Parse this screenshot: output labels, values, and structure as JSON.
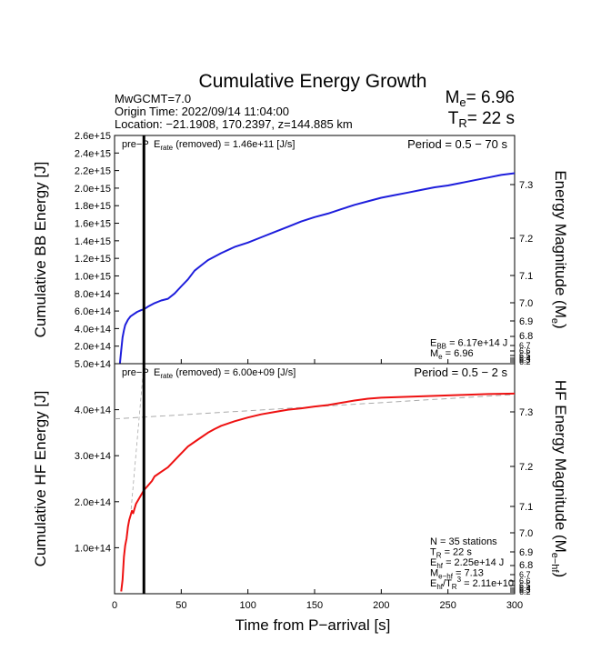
{
  "title": "Cumulative Energy Growth",
  "header": {
    "line1": "MwGCMT=7.0",
    "line2": "Origin Time: 2022/09/14 11:04:00",
    "line3": "Location: −21.1908, 170.2397, z=144.885 km",
    "me_label": "M",
    "me_sub": "e",
    "me_value": "= 6.96",
    "tr_label": "T",
    "tr_sub": "R",
    "tr_value": "= 22 s"
  },
  "xlabel": "Time from P−arrival [s]",
  "colors": {
    "bb": "#1e1edc",
    "hf": "#ee1111",
    "fit": "#aaaaaa"
  },
  "chart_data": [
    {
      "type": "line",
      "name": "bb",
      "ylabel": "Cumulative BB Energy [J]",
      "ylabel_right": "Energy Magnitude (M",
      "ylabel_right_sub": "e",
      "ylabel_right_close": ")",
      "prep_text": "pre−P",
      "erate_label": "E",
      "erate_sub": "rate",
      "erate_text": " (removed) = 1.46e+11 [J/s]",
      "period": "Period = 0.5 − 70 s",
      "xlim": [
        0,
        300
      ],
      "ylim": [
        0,
        2600000000000000.0
      ],
      "x_ticks": [
        0,
        50,
        100,
        150,
        200,
        250,
        300
      ],
      "y_ticks": [
        200000000000000.0,
        400000000000000.0,
        600000000000000.0,
        800000000000000.0,
        1000000000000000.0,
        1200000000000000.0,
        1400000000000000.0,
        1600000000000000.0,
        1800000000000000.0,
        2000000000000000.0,
        2200000000000000.0,
        2400000000000000.0,
        2600000000000000.0
      ],
      "y_tick_labels": [
        "2.0e+14",
        "4.0e+14",
        "6.0e+14",
        "8.0e+14",
        "1.0e+15",
        "1.2e+15",
        "1.4e+15",
        "1.6e+15",
        "1.8e+15",
        "2.0e+15",
        "2.2e+15",
        "2.4e+15",
        "2.6e+15"
      ],
      "mag_ticks": [
        "6.9",
        "7.0",
        "7.1",
        "7.2",
        "7.3"
      ],
      "mag_ticks_small": [
        "6.8",
        "6.7",
        "6.6",
        "6.5",
        "6.4",
        "6.3",
        "6.2"
      ],
      "mag_tick_values": [
        7.3,
        7.2,
        7.1,
        7.0,
        6.9,
        6.8,
        6.7,
        6.6,
        6.5,
        6.4,
        6.3,
        6.2
      ],
      "vline_x": 22,
      "x": [
        4,
        5,
        6,
        7,
        8,
        10,
        12,
        14,
        17,
        20,
        22,
        25,
        30,
        35,
        40,
        45,
        50,
        55,
        60,
        65,
        70,
        80,
        90,
        100,
        110,
        120,
        130,
        140,
        150,
        160,
        170,
        180,
        190,
        200,
        210,
        220,
        230,
        240,
        250,
        260,
        270,
        280,
        290,
        300
      ],
      "y": [
        5000000000000.0,
        150000000000000.0,
        300000000000000.0,
        380000000000000.0,
        440000000000000.0,
        500000000000000.0,
        540000000000000.0,
        560000000000000.0,
        590000000000000.0,
        610000000000000.0,
        620000000000000.0,
        650000000000000.0,
        690000000000000.0,
        720000000000000.0,
        740000000000000.0,
        800000000000000.0,
        880000000000000.0,
        960000000000000.0,
        1060000000000000.0,
        1120000000000000.0,
        1180000000000000.0,
        1260000000000000.0,
        1330000000000000.0,
        1380000000000000.0,
        1440000000000000.0,
        1500000000000000.0,
        1560000000000000.0,
        1620000000000000.0,
        1670000000000000.0,
        1710000000000000.0,
        1760000000000000.0,
        1810000000000000.0,
        1850000000000000.0,
        1890000000000000.0,
        1920000000000000.0,
        1950000000000000.0,
        1980000000000000.0,
        2010000000000000.0,
        2030000000000000.0,
        2060000000000000.0,
        2090000000000000.0,
        2120000000000000.0,
        2150000000000000.0,
        2170000000000000.0
      ],
      "annot": [
        {
          "main": "E",
          "sub": "BB",
          "rest": " = 6.17e+14 J"
        },
        {
          "main": "M",
          "sub": "e",
          "rest": " = 6.96"
        }
      ]
    },
    {
      "type": "line",
      "name": "hf",
      "ylabel": "Cumulative HF Energy [J]",
      "ylabel_right": "HF Energy Magnitude (M",
      "ylabel_right_sub": "e−hf",
      "ylabel_right_close": ")",
      "prep_text": "pre−P",
      "erate_label": "E",
      "erate_sub": "rate",
      "erate_text": " (removed) = 6.00e+09 [J/s]",
      "period": "Period = 0.5 − 2 s",
      "xlim": [
        0,
        300
      ],
      "ylim": [
        0,
        500000000000000.0
      ],
      "x_ticks": [
        0,
        50,
        100,
        150,
        200,
        250,
        300
      ],
      "x_tick_labels": [
        "0",
        "50",
        "100",
        "150",
        "200",
        "250",
        "300"
      ],
      "y_ticks": [
        100000000000000.0,
        200000000000000.0,
        300000000000000.0,
        400000000000000.0,
        500000000000000.0
      ],
      "y_tick_labels": [
        "1.0e+14",
        "2.0e+14",
        "3.0e+14",
        "4.0e+14",
        "5.0e+14"
      ],
      "mag_ticks": [
        "6.9",
        "7.0",
        "7.1",
        "7.2",
        "7.3"
      ],
      "mag_ticks_small": [
        "6.8",
        "6.7",
        "6.6",
        "6.5",
        "6.4",
        "6.3",
        "6.2"
      ],
      "mag_tick_values": [
        7.3,
        7.2,
        7.1,
        7.0,
        6.9,
        6.8,
        6.7,
        6.6,
        6.5,
        6.4,
        6.3,
        6.2
      ],
      "vline_x": 22,
      "fit_x": [
        0,
        300
      ],
      "fit_y": [
        380000000000000.0,
        433000000000000.0
      ],
      "fit_steep_x": [
        12,
        22
      ],
      "fit_steep_y": [
        170000000000000.0,
        500000000000000.0
      ],
      "x": [
        5,
        6,
        7,
        8,
        9,
        10,
        11,
        12,
        13,
        14,
        15,
        16,
        18,
        20,
        22,
        25,
        28,
        30,
        35,
        40,
        45,
        50,
        55,
        60,
        65,
        70,
        75,
        80,
        85,
        90,
        100,
        110,
        120,
        130,
        140,
        150,
        160,
        170,
        180,
        190,
        200,
        220,
        240,
        260,
        280,
        300
      ],
      "y": [
        5000000000000.0,
        30000000000000.0,
        80000000000000.0,
        105000000000000.0,
        120000000000000.0,
        145000000000000.0,
        160000000000000.0,
        170000000000000.0,
        180000000000000.0,
        175000000000000.0,
        185000000000000.0,
        195000000000000.0,
        205000000000000.0,
        215000000000000.0,
        225000000000000.0,
        235000000000000.0,
        245000000000000.0,
        255000000000000.0,
        265000000000000.0,
        275000000000000.0,
        290000000000000.0,
        305000000000000.0,
        320000000000000.0,
        330000000000000.0,
        340000000000000.0,
        350000000000000.0,
        358000000000000.0,
        365000000000000.0,
        370000000000000.0,
        375000000000000.0,
        383000000000000.0,
        390000000000000.0,
        395000000000000.0,
        400000000000000.0,
        403000000000000.0,
        407000000000000.0,
        410000000000000.0,
        415000000000000.0,
        420000000000000.0,
        424000000000000.0,
        426000000000000.0,
        428000000000000.0,
        430000000000000.0,
        432000000000000.0,
        434000000000000.0,
        435000000000000.0
      ],
      "annot": [
        {
          "main": "N = 35 stations",
          "sub": "",
          "rest": ""
        },
        {
          "main": "T",
          "sub": "R",
          "rest": " = 22  s"
        },
        {
          "main": "E",
          "sub": "hf",
          "rest": " = 2.25e+14 J"
        },
        {
          "main": "M",
          "sub": "e−hf",
          "rest": " = 7.13"
        },
        {
          "main": "E",
          "sub": "hf",
          "rest": "/T",
          "sub2": "R",
          "sup": "3",
          "rest2": " =  2.11e+10"
        }
      ]
    }
  ]
}
